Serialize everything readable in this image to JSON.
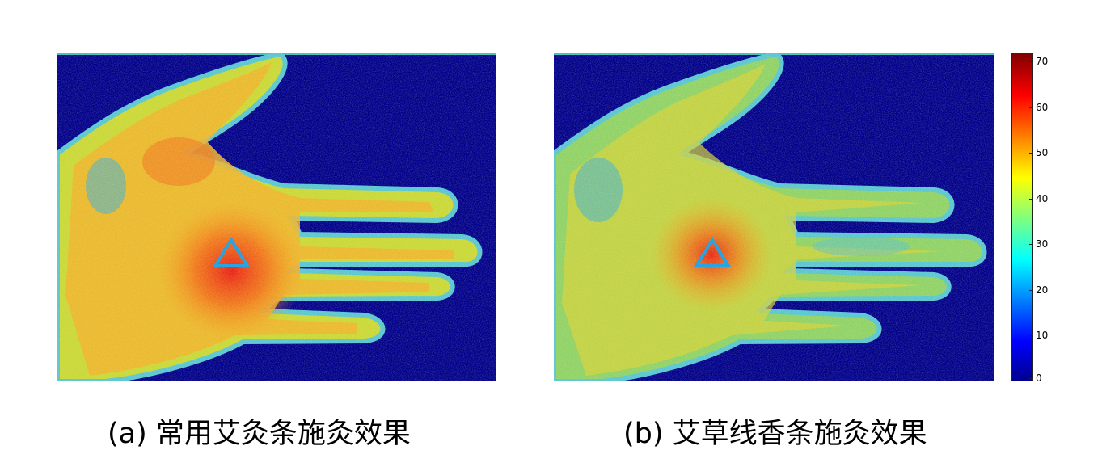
{
  "figure": {
    "panels": [
      {
        "id": "a",
        "caption": "(a) 常用艾灸条施灸效果"
      },
      {
        "id": "b",
        "caption": "(b) 艾草线香条施灸效果"
      }
    ],
    "marker": {
      "shape": "triangle",
      "color": "#2aa3e0"
    },
    "colorbar": {
      "colormap": "jet",
      "ticks": [
        "0",
        "10",
        "20",
        "30",
        "40",
        "50",
        "60",
        "70"
      ],
      "min": 0,
      "max": 72,
      "background_color": "#00008f"
    }
  }
}
